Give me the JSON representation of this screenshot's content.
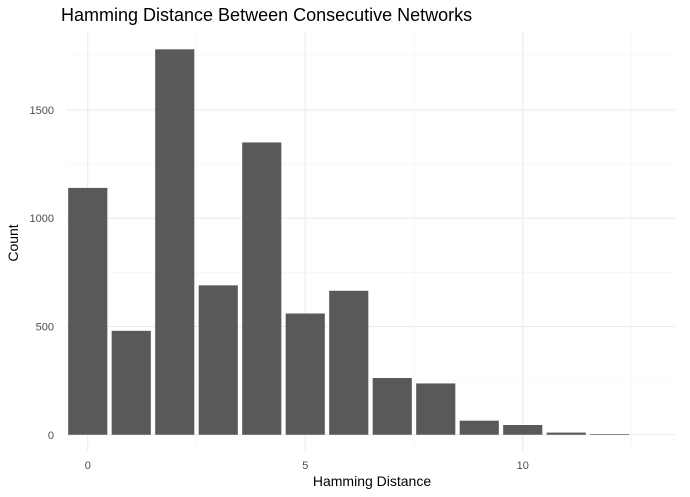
{
  "chart_data": {
    "type": "bar",
    "title": "Hamming Distance Between Consecutive Networks",
    "xlabel": "Hamming Distance",
    "ylabel": "Count",
    "x": [
      0,
      1,
      2,
      3,
      4,
      5,
      6,
      7,
      8,
      9,
      10,
      11,
      12
    ],
    "values": [
      1140,
      480,
      1780,
      690,
      1350,
      560,
      665,
      262,
      237,
      65,
      45,
      10,
      3
    ],
    "xlim": [
      -0.5,
      13.5
    ],
    "ylim": [
      -75,
      1860
    ],
    "x_ticks": [
      0,
      5,
      10
    ],
    "x_tick_labels": [
      "0",
      "5",
      "10"
    ],
    "y_ticks": [
      0,
      500,
      1000,
      1500
    ],
    "y_tick_labels": [
      "0",
      "500",
      "1000",
      "1500"
    ],
    "bar_color": "#595959",
    "grid": true,
    "legend": "none"
  }
}
